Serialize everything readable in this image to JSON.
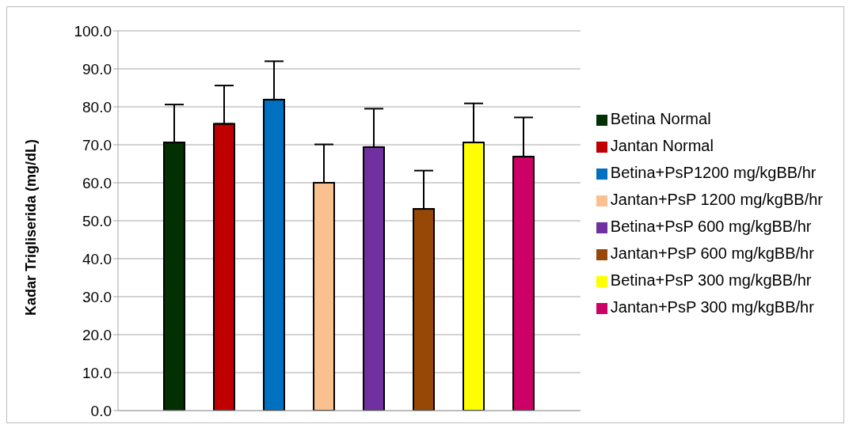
{
  "chart_data": {
    "type": "bar",
    "ylabel": "Kadar Trigliserida (mg/dL)",
    "categories": [
      null
    ],
    "series": [
      {
        "name": "Betina Normal",
        "color": "#033003",
        "values": [
          70.6
        ],
        "errors": [
          [
            70.6,
            80.6
          ]
        ]
      },
      {
        "name": "Jantan Normal",
        "color": "#c00000",
        "values": [
          75.5
        ],
        "errors": [
          [
            75.5,
            85.6
          ]
        ]
      },
      {
        "name": "Betina+PsP1200 mg/kgBB/hr",
        "color": "#0070c0",
        "values": [
          81.9
        ],
        "errors": [
          [
            81.9,
            92.0
          ]
        ]
      },
      {
        "name": "Jantan+PsP 1200 mg/kgBB/hr",
        "color": "#fac090",
        "values": [
          60.0
        ],
        "errors": [
          [
            60.0,
            70.1
          ]
        ]
      },
      {
        "name": "Betina+PsP 600 mg/kgBB/hr",
        "color": "#7030a0",
        "values": [
          69.4
        ],
        "errors": [
          [
            69.4,
            79.5
          ]
        ]
      },
      {
        "name": "Jantan+PsP 600 mg/kgBB/hr",
        "color": "#974706",
        "values": [
          53.1
        ],
        "errors": [
          [
            53.1,
            63.2
          ]
        ]
      },
      {
        "name": "Betina+PsP 300 mg/kgBB/hr",
        "color": "#ffff00",
        "values": [
          70.6
        ],
        "errors": [
          [
            70.6,
            80.9
          ]
        ]
      },
      {
        "name": "Jantan+PsP 300 mg/kgBB/hr",
        "color": "#cc0066",
        "values": [
          66.9
        ],
        "errors": [
          [
            66.9,
            77.2
          ]
        ]
      }
    ],
    "ylim": [
      0,
      100
    ],
    "yticks": [
      {
        "value": 0,
        "label": "0.0"
      },
      {
        "value": 10,
        "label": "10.0"
      },
      {
        "value": 20,
        "label": "20.0"
      },
      {
        "value": 30,
        "label": "30.0"
      },
      {
        "value": 40,
        "label": "40.0"
      },
      {
        "value": 50,
        "label": "50.0"
      },
      {
        "value": 60,
        "label": "60.0"
      },
      {
        "value": 70,
        "label": "70.0"
      },
      {
        "value": 80,
        "label": "80.0"
      },
      {
        "value": 90,
        "label": "90.0"
      },
      {
        "value": 100,
        "label": "100.0"
      }
    ],
    "grid": "y",
    "legend": "right",
    "tick_labels": "y"
  }
}
